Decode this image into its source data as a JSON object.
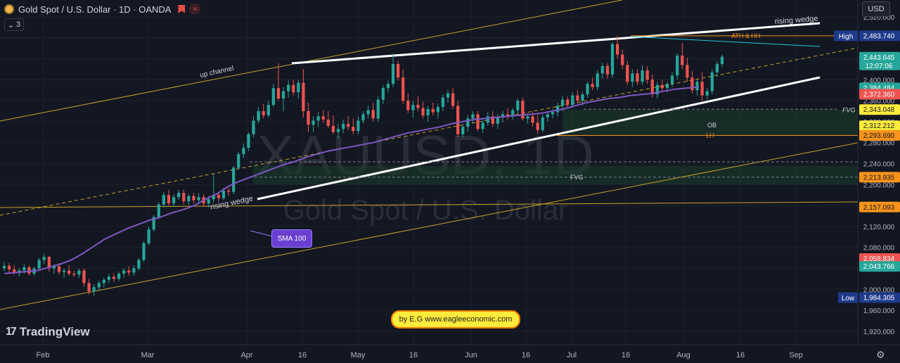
{
  "header": {
    "title": "Gold Spot / U.S. Dollar · 1D · OANDA",
    "indicator_count": "3"
  },
  "toolbar": {
    "currency": "USD"
  },
  "branding": {
    "logo_text": "TradingView",
    "logo_mark": "17"
  },
  "watermark": {
    "symbol": "XAUUSD, 1D",
    "name": "Gold Spot / U.S. Dollar"
  },
  "credit": "by E.G www.eagleeconomic.com",
  "annotations": {
    "up_channel": "up channel",
    "rising_wedge_top": "rising wedge",
    "rising_wedge_bottom": "rising wedge",
    "sma_callout": "SMA 100",
    "ath": "ATH & HH",
    "fvg_top": "FVG",
    "fvg_bottom": "FVG",
    "ob": "OB",
    "lh": "LH"
  },
  "colors": {
    "background": "#131722",
    "up_candle": "#26a69a",
    "down_candle": "#ef5350",
    "sma": "#7e57c2",
    "channel": "#c9a227",
    "wedge": "#ffffff",
    "level": "#f7931a",
    "teal_line": "#26c6da"
  },
  "chart_data": {
    "type": "candlestick",
    "symbol": "XAUUSD",
    "timeframe": "1D",
    "ylim": [
      1900,
      2540
    ],
    "y_ticks": [
      "1,920.000",
      "1,960.000",
      "2,000.000",
      "2,040.000",
      "2,080.000",
      "2,120.000",
      "2,160.000",
      "2,200.000",
      "2,240.000",
      "2,280.000",
      "2,320.000",
      "2,360.000",
      "2,400.000",
      "2,440.000",
      "2,480.000",
      "2,520.000"
    ],
    "x_ticks": [
      "Feb",
      "Mar",
      "Apr",
      "16",
      "May",
      "16",
      "Jun",
      "16",
      "Jul",
      "16",
      "Aug",
      "16",
      "Sep"
    ],
    "price_labels": [
      {
        "text": "High",
        "value": "2,483.740",
        "price": 2483.74,
        "color": "#1e3a8a",
        "tag": true
      },
      {
        "text": "",
        "value": "2,443.645",
        "price": 2443.645,
        "color": "#26a69a",
        "sub": "12:07:06"
      },
      {
        "text": "",
        "value": "2,384.484",
        "price": 2384.484,
        "color": "#26a69a"
      },
      {
        "text": "",
        "value": "2,372.360",
        "price": 2372.36,
        "color": "#ef5350"
      },
      {
        "text": "",
        "value": "2,343.048",
        "price": 2343.048,
        "color": "#ffeb3b",
        "dark": true
      },
      {
        "text": "",
        "value": "2,312.212",
        "price": 2312.212,
        "color": "#ffeb3b",
        "dark": true
      },
      {
        "text": "",
        "value": "2,293.690",
        "price": 2293.69,
        "color": "#f7931a",
        "dark": true
      },
      {
        "text": "",
        "value": "2,213.935",
        "price": 2213.935,
        "color": "#f7931a",
        "dark": true
      },
      {
        "text": "",
        "value": "2,157.093",
        "price": 2157.093,
        "color": "#f7931a",
        "dark": true
      },
      {
        "text": "",
        "value": "2,058.834",
        "price": 2058.834,
        "color": "#ef5350"
      },
      {
        "text": "",
        "value": "2,043.766",
        "price": 2043.766,
        "color": "#26a69a"
      },
      {
        "text": "Low",
        "value": "1,984.305",
        "price": 1984.305,
        "color": "#1e3a8a",
        "tag": true
      }
    ],
    "candles": [
      [
        2040,
        2052,
        2035,
        2045
      ],
      [
        2045,
        2050,
        2030,
        2038
      ],
      [
        2038,
        2046,
        2028,
        2031
      ],
      [
        2031,
        2040,
        2025,
        2036
      ],
      [
        2036,
        2048,
        2030,
        2042
      ],
      [
        2042,
        2046,
        2026,
        2030
      ],
      [
        2030,
        2044,
        2026,
        2040
      ],
      [
        2040,
        2060,
        2036,
        2056
      ],
      [
        2056,
        2068,
        2048,
        2062
      ],
      [
        2062,
        2064,
        2034,
        2040
      ],
      [
        2040,
        2048,
        2030,
        2044
      ],
      [
        2044,
        2050,
        2028,
        2033
      ],
      [
        2033,
        2040,
        2022,
        2036
      ],
      [
        2036,
        2046,
        2026,
        2030
      ],
      [
        2030,
        2036,
        2024,
        2028
      ],
      [
        2028,
        2040,
        2022,
        2036
      ],
      [
        2036,
        2040,
        2005,
        2012
      ],
      [
        2012,
        2020,
        1990,
        1996
      ],
      [
        1996,
        2010,
        1988,
        2004
      ],
      [
        2004,
        2016,
        1998,
        2012
      ],
      [
        2012,
        2022,
        2004,
        2018
      ],
      [
        2018,
        2030,
        2012,
        2024
      ],
      [
        2024,
        2030,
        2014,
        2020
      ],
      [
        2020,
        2034,
        2016,
        2030
      ],
      [
        2030,
        2040,
        2022,
        2036
      ],
      [
        2036,
        2044,
        2026,
        2032
      ],
      [
        2032,
        2046,
        2026,
        2040
      ],
      [
        2040,
        2060,
        2036,
        2056
      ],
      [
        2056,
        2092,
        2052,
        2088
      ],
      [
        2088,
        2120,
        2084,
        2114
      ],
      [
        2114,
        2142,
        2110,
        2138
      ],
      [
        2138,
        2166,
        2134,
        2162
      ],
      [
        2162,
        2186,
        2156,
        2180
      ],
      [
        2180,
        2190,
        2160,
        2164
      ],
      [
        2164,
        2182,
        2158,
        2176
      ],
      [
        2176,
        2190,
        2170,
        2184
      ],
      [
        2184,
        2190,
        2162,
        2168
      ],
      [
        2168,
        2182,
        2160,
        2178
      ],
      [
        2178,
        2184,
        2164,
        2170
      ],
      [
        2170,
        2184,
        2164,
        2176
      ],
      [
        2176,
        2182,
        2158,
        2164
      ],
      [
        2164,
        2178,
        2156,
        2172
      ],
      [
        2172,
        2220,
        2166,
        2180
      ],
      [
        2180,
        2186,
        2168,
        2174
      ],
      [
        2174,
        2194,
        2170,
        2188
      ],
      [
        2188,
        2194,
        2178,
        2186
      ],
      [
        2186,
        2236,
        2182,
        2232
      ],
      [
        2232,
        2262,
        2228,
        2258
      ],
      [
        2258,
        2278,
        2250,
        2270
      ],
      [
        2270,
        2300,
        2264,
        2296
      ],
      [
        2296,
        2330,
        2290,
        2322
      ],
      [
        2322,
        2348,
        2316,
        2340
      ],
      [
        2340,
        2354,
        2326,
        2332
      ],
      [
        2332,
        2360,
        2328,
        2352
      ],
      [
        2352,
        2392,
        2348,
        2384
      ],
      [
        2384,
        2432,
        2360,
        2364
      ],
      [
        2364,
        2386,
        2340,
        2378
      ],
      [
        2378,
        2398,
        2366,
        2390
      ],
      [
        2390,
        2400,
        2370,
        2376
      ],
      [
        2376,
        2400,
        2364,
        2394
      ],
      [
        2394,
        2420,
        2328,
        2340
      ],
      [
        2340,
        2356,
        2300,
        2314
      ],
      [
        2314,
        2330,
        2300,
        2322
      ],
      [
        2322,
        2338,
        2310,
        2330
      ],
      [
        2330,
        2342,
        2318,
        2324
      ],
      [
        2324,
        2340,
        2308,
        2312
      ],
      [
        2312,
        2332,
        2296,
        2300
      ],
      [
        2300,
        2316,
        2288,
        2306
      ],
      [
        2306,
        2324,
        2298,
        2316
      ],
      [
        2316,
        2330,
        2304,
        2310
      ],
      [
        2310,
        2326,
        2296,
        2302
      ],
      [
        2302,
        2330,
        2296,
        2322
      ],
      [
        2322,
        2340,
        2316,
        2334
      ],
      [
        2334,
        2350,
        2326,
        2342
      ],
      [
        2342,
        2356,
        2320,
        2326
      ],
      [
        2326,
        2368,
        2320,
        2362
      ],
      [
        2362,
        2390,
        2354,
        2384
      ],
      [
        2384,
        2398,
        2376,
        2392
      ],
      [
        2392,
        2450,
        2386,
        2430
      ],
      [
        2430,
        2436,
        2398,
        2404
      ],
      [
        2404,
        2420,
        2354,
        2360
      ],
      [
        2360,
        2374,
        2336,
        2342
      ],
      [
        2342,
        2360,
        2328,
        2352
      ],
      [
        2352,
        2368,
        2340,
        2346
      ],
      [
        2346,
        2358,
        2326,
        2332
      ],
      [
        2332,
        2350,
        2320,
        2344
      ],
      [
        2344,
        2356,
        2332,
        2338
      ],
      [
        2338,
        2354,
        2326,
        2348
      ],
      [
        2348,
        2372,
        2340,
        2366
      ],
      [
        2366,
        2380,
        2356,
        2374
      ],
      [
        2374,
        2384,
        2344,
        2350
      ],
      [
        2350,
        2360,
        2290,
        2296
      ],
      [
        2296,
        2316,
        2290,
        2310
      ],
      [
        2310,
        2332,
        2300,
        2326
      ],
      [
        2326,
        2340,
        2316,
        2334
      ],
      [
        2334,
        2340,
        2302,
        2306
      ],
      [
        2306,
        2326,
        2298,
        2318
      ],
      [
        2318,
        2338,
        2312,
        2330
      ],
      [
        2330,
        2340,
        2310,
        2316
      ],
      [
        2316,
        2334,
        2306,
        2328
      ],
      [
        2328,
        2340,
        2318,
        2334
      ],
      [
        2334,
        2346,
        2324,
        2330
      ],
      [
        2330,
        2346,
        2324,
        2342
      ],
      [
        2342,
        2364,
        2336,
        2360
      ],
      [
        2360,
        2366,
        2322,
        2326
      ],
      [
        2326,
        2336,
        2316,
        2330
      ],
      [
        2330,
        2340,
        2310,
        2318
      ],
      [
        2318,
        2332,
        2296,
        2304
      ],
      [
        2304,
        2334,
        2300,
        2328
      ],
      [
        2328,
        2340,
        2320,
        2334
      ],
      [
        2334,
        2344,
        2326,
        2338
      ],
      [
        2338,
        2356,
        2330,
        2350
      ],
      [
        2350,
        2370,
        2340,
        2362
      ],
      [
        2362,
        2368,
        2346,
        2352
      ],
      [
        2352,
        2376,
        2346,
        2370
      ],
      [
        2370,
        2380,
        2354,
        2360
      ],
      [
        2360,
        2376,
        2350,
        2372
      ],
      [
        2372,
        2396,
        2366,
        2392
      ],
      [
        2392,
        2404,
        2380,
        2386
      ],
      [
        2386,
        2418,
        2380,
        2412
      ],
      [
        2412,
        2432,
        2402,
        2426
      ],
      [
        2426,
        2432,
        2402,
        2410
      ],
      [
        2410,
        2472,
        2404,
        2468
      ],
      [
        2468,
        2484,
        2440,
        2448
      ],
      [
        2448,
        2458,
        2420,
        2428
      ],
      [
        2428,
        2436,
        2390,
        2396
      ],
      [
        2396,
        2420,
        2386,
        2412
      ],
      [
        2412,
        2420,
        2390,
        2396
      ],
      [
        2396,
        2428,
        2390,
        2418
      ],
      [
        2418,
        2426,
        2392,
        2400
      ],
      [
        2400,
        2410,
        2366,
        2372
      ],
      [
        2372,
        2396,
        2364,
        2390
      ],
      [
        2390,
        2400,
        2378,
        2384
      ],
      [
        2384,
        2396,
        2376,
        2392
      ],
      [
        2392,
        2414,
        2386,
        2408
      ],
      [
        2408,
        2450,
        2400,
        2446
      ],
      [
        2446,
        2470,
        2420,
        2428
      ],
      [
        2428,
        2442,
        2396,
        2404
      ],
      [
        2404,
        2416,
        2374,
        2380
      ],
      [
        2380,
        2400,
        2370,
        2396
      ],
      [
        2396,
        2414,
        2360,
        2370
      ],
      [
        2370,
        2384,
        2362,
        2378
      ],
      [
        2378,
        2420,
        2372,
        2414
      ],
      [
        2414,
        2436,
        2406,
        2430
      ],
      [
        2430,
        2448,
        2424,
        2444
      ]
    ],
    "sma100": {
      "name": "SMA 100",
      "values": [
        2030,
        2032,
        2034,
        2036,
        2042,
        2048,
        2056,
        2068,
        2082,
        2096,
        2106,
        2116,
        2124,
        2132,
        2138,
        2146,
        2152,
        2160,
        2172,
        2182,
        2196,
        2206,
        2214,
        2222,
        2230,
        2238,
        2244,
        2252,
        2258,
        2264,
        2268,
        2272,
        2276,
        2280,
        2286,
        2292,
        2298,
        2302,
        2306,
        2310,
        2316,
        2320,
        2324,
        2326,
        2328,
        2330,
        2332,
        2334,
        2336,
        2340,
        2344,
        2350,
        2356,
        2360,
        2364,
        2366,
        2370,
        2372,
        2374,
        2378,
        2382,
        2384,
        2386
      ]
    },
    "levels": [
      {
        "price": 2483.74,
        "color": "#f7931a",
        "label_key": "ath"
      },
      {
        "price": 2343.048,
        "color": "#ffeb3b",
        "label_key": "fvg_top"
      },
      {
        "price": 2293.69,
        "color": "#f7931a",
        "label_key": "lh"
      },
      {
        "price": 2213.935,
        "color": "#f7931a",
        "label_key": "fvg_bottom"
      }
    ],
    "zones": [
      {
        "top": 2343.048,
        "bottom": 2312.212,
        "label_key": "ob"
      },
      {
        "top": 2236,
        "bottom": 2200,
        "label_key": "fvg_bottom"
      }
    ]
  }
}
